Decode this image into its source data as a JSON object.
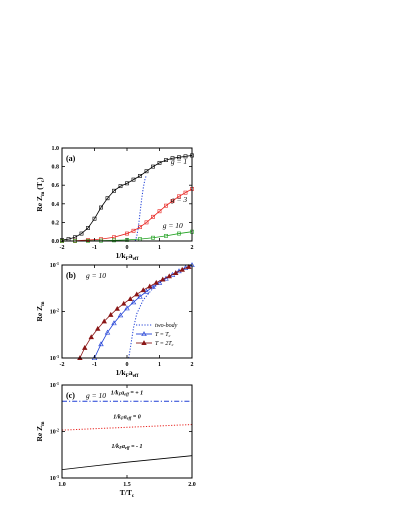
{
  "colors": {
    "black": "#000000",
    "red": "#e8231f",
    "green": "#1fa11f",
    "blue": "#1f3fd6",
    "dark_red": "#8a1616",
    "dotted": "#1f3fd6"
  },
  "chart_data": [
    {
      "id": "a",
      "type": "line",
      "panel_label": "(a)",
      "ylabel": "Re Z",
      "ylabel_sub": "m",
      "ylabel_suffix": " (T",
      "ylabel_suffix_sub": "c",
      "ylabel_close": ")",
      "xlabel": "1/k",
      "xlabel_sub1": "F",
      "xlabel_mid": "a",
      "xlabel_sub2": "eff",
      "xlim": [
        -2,
        2
      ],
      "ylim": [
        0,
        1.0
      ],
      "xticks": [
        "-2",
        "-1",
        "0",
        "1",
        "2"
      ],
      "xtick_values": [
        -2,
        -1,
        0,
        1,
        2
      ],
      "yticks": [
        "0.0",
        "0.2",
        "0.4",
        "0.6",
        "0.8",
        "1.0"
      ],
      "ytick_values": [
        0,
        0.2,
        0.4,
        0.6,
        0.8,
        1.0
      ],
      "annotations": [
        {
          "text": "g = 1",
          "x": 1.35,
          "y": 0.83
        },
        {
          "text": "g = 3",
          "x": 1.35,
          "y": 0.42
        },
        {
          "text": "g = 10",
          "x": 1.1,
          "y": 0.14
        }
      ],
      "series": [
        {
          "color": "black",
          "marker": "square",
          "style": "solid",
          "x": [
            -2,
            -1.8,
            -1.6,
            -1.4,
            -1.2,
            -1,
            -0.8,
            -0.6,
            -0.4,
            -0.2,
            0,
            0.2,
            0.4,
            0.6,
            0.8,
            1,
            1.2,
            1.4,
            1.6,
            1.8,
            2
          ],
          "y": [
            0.01,
            0.02,
            0.04,
            0.08,
            0.14,
            0.24,
            0.36,
            0.46,
            0.54,
            0.59,
            0.62,
            0.66,
            0.7,
            0.75,
            0.8,
            0.84,
            0.87,
            0.89,
            0.9,
            0.91,
            0.92
          ]
        },
        {
          "color": "red",
          "marker": "square",
          "style": "solid",
          "x": [
            -2,
            -1.6,
            -1.2,
            -0.8,
            -0.4,
            0,
            0.2,
            0.4,
            0.6,
            0.8,
            1,
            1.2,
            1.4,
            1.6,
            1.8,
            2
          ],
          "y": [
            0,
            0.003,
            0.01,
            0.02,
            0.04,
            0.08,
            0.11,
            0.15,
            0.2,
            0.26,
            0.32,
            0.38,
            0.43,
            0.48,
            0.52,
            0.56
          ]
        },
        {
          "color": "green",
          "marker": "square",
          "style": "solid",
          "x": [
            -2,
            -1.6,
            -1.2,
            -0.8,
            -0.4,
            0,
            0.4,
            0.8,
            1.2,
            1.6,
            2
          ],
          "y": [
            0,
            0,
            0.002,
            0.004,
            0.007,
            0.012,
            0.02,
            0.035,
            0.055,
            0.08,
            0.1
          ]
        },
        {
          "color": "dotted",
          "marker": "none",
          "style": "dotted",
          "x": [
            0.25,
            0.3,
            0.35,
            0.4,
            0.45,
            0.5,
            0.55,
            0.6
          ],
          "y": [
            0,
            0.05,
            0.15,
            0.3,
            0.45,
            0.57,
            0.66,
            0.71
          ]
        }
      ]
    },
    {
      "id": "b",
      "type": "line",
      "yscale": "log",
      "panel_label": "(b)",
      "g_label": "g = 10",
      "ylabel": "Re Z",
      "ylabel_sub": "m",
      "xlabel": "1/k",
      "xlabel_sub1": "F",
      "xlabel_mid": "a",
      "xlabel_sub2": "eff",
      "xlim": [
        -2,
        2
      ],
      "ylim_exp": [
        -3,
        -1
      ],
      "xticks": [
        "-2",
        "-1",
        "0",
        "1",
        "2"
      ],
      "xtick_values": [
        -2,
        -1,
        0,
        1,
        2
      ],
      "yticks": [
        "10",
        "10",
        "10"
      ],
      "ytick_exps": [
        "-3",
        "-2",
        "-1"
      ],
      "ytick_values": [
        -3,
        -2,
        -1
      ],
      "legend": [
        {
          "label": "two-body",
          "color": "dotted",
          "marker": "none",
          "style": "dotted"
        },
        {
          "label": "T = T",
          "sub": "c",
          "color": "blue",
          "marker": "triangle-open",
          "style": "solid"
        },
        {
          "label": "T = 2T",
          "sub": "c",
          "color": "dark_red",
          "marker": "triangle-filled",
          "style": "solid"
        }
      ],
      "series": [
        {
          "color": "dotted",
          "marker": "none",
          "style": "dotted",
          "x": [
            0.05,
            0.1,
            0.2,
            0.3,
            0.5,
            0.8,
            1.2,
            1.6,
            2
          ],
          "y_log": [
            -3,
            -2.8,
            -2.35,
            -2.05,
            -1.75,
            -1.5,
            -1.28,
            -1.12,
            -1.0
          ]
        },
        {
          "color": "blue",
          "marker": "triangle-open",
          "style": "solid",
          "x": [
            -1,
            -0.8,
            -0.6,
            -0.4,
            -0.2,
            0,
            0.2,
            0.4,
            0.6,
            0.8,
            1,
            1.2,
            1.4,
            1.6,
            1.8,
            2
          ],
          "y_log": [
            -3,
            -2.7,
            -2.45,
            -2.25,
            -2.08,
            -1.93,
            -1.8,
            -1.68,
            -1.57,
            -1.47,
            -1.38,
            -1.29,
            -1.21,
            -1.13,
            -1.06,
            -1.0
          ]
        },
        {
          "color": "dark_red",
          "marker": "triangle-filled",
          "style": "solid",
          "x": [
            -1.45,
            -1.3,
            -1.1,
            -0.9,
            -0.7,
            -0.5,
            -0.3,
            -0.1,
            0.1,
            0.3,
            0.5,
            0.7,
            0.9,
            1.1,
            1.3,
            1.5,
            1.7,
            1.9
          ],
          "y_log": [
            -3,
            -2.78,
            -2.55,
            -2.37,
            -2.21,
            -2.07,
            -1.94,
            -1.83,
            -1.73,
            -1.63,
            -1.54,
            -1.46,
            -1.38,
            -1.31,
            -1.24,
            -1.17,
            -1.1,
            -1.04
          ]
        }
      ]
    },
    {
      "id": "c",
      "type": "line",
      "yscale": "log",
      "panel_label": "(c)",
      "g_label": "g = 10",
      "ylabel": "Re Z",
      "ylabel_sub": "m",
      "xlabel": "T/T",
      "xlabel_sub1": "c",
      "xlim": [
        1.0,
        2.0
      ],
      "ylim_exp": [
        -3,
        -1
      ],
      "xticks": [
        "1.0",
        "1.5",
        "2.0"
      ],
      "xtick_values": [
        1.0,
        1.5,
        2.0
      ],
      "yticks": [
        "10",
        "10",
        "10"
      ],
      "ytick_exps": [
        "-3",
        "-2",
        "-1"
      ],
      "ytick_values": [
        -3,
        -2,
        -1
      ],
      "annotations": [
        {
          "text": "1/k",
          "sub1": "F",
          "mid": "a",
          "sub2": "eff",
          "tail": " = + 1",
          "x": 1.5,
          "y_log": -1.2
        },
        {
          "text": "1/k",
          "sub1": "F",
          "mid": "a",
          "sub2": "eff",
          "tail": " = 0",
          "x": 1.5,
          "y_log": -1.72
        },
        {
          "text": "1/k",
          "sub1": "F",
          "mid": "a",
          "sub2": "eff",
          "tail": " = - 1",
          "x": 1.5,
          "y_log": -2.35
        }
      ],
      "series": [
        {
          "color": "blue",
          "marker": "none",
          "style": "dashdot",
          "x": [
            1.0,
            1.25,
            1.5,
            1.75,
            2.0
          ],
          "y_log": [
            -1.35,
            -1.35,
            -1.35,
            -1.35,
            -1.35
          ]
        },
        {
          "color": "red",
          "marker": "none",
          "style": "dotted",
          "x": [
            1.0,
            1.25,
            1.5,
            1.75,
            2.0
          ],
          "y_log": [
            -1.97,
            -1.94,
            -1.91,
            -1.88,
            -1.85
          ]
        },
        {
          "color": "black",
          "marker": "none",
          "style": "solid",
          "x": [
            1.0,
            1.25,
            1.5,
            1.75,
            2.0
          ],
          "y_log": [
            -2.82,
            -2.74,
            -2.66,
            -2.59,
            -2.52
          ]
        }
      ]
    }
  ]
}
